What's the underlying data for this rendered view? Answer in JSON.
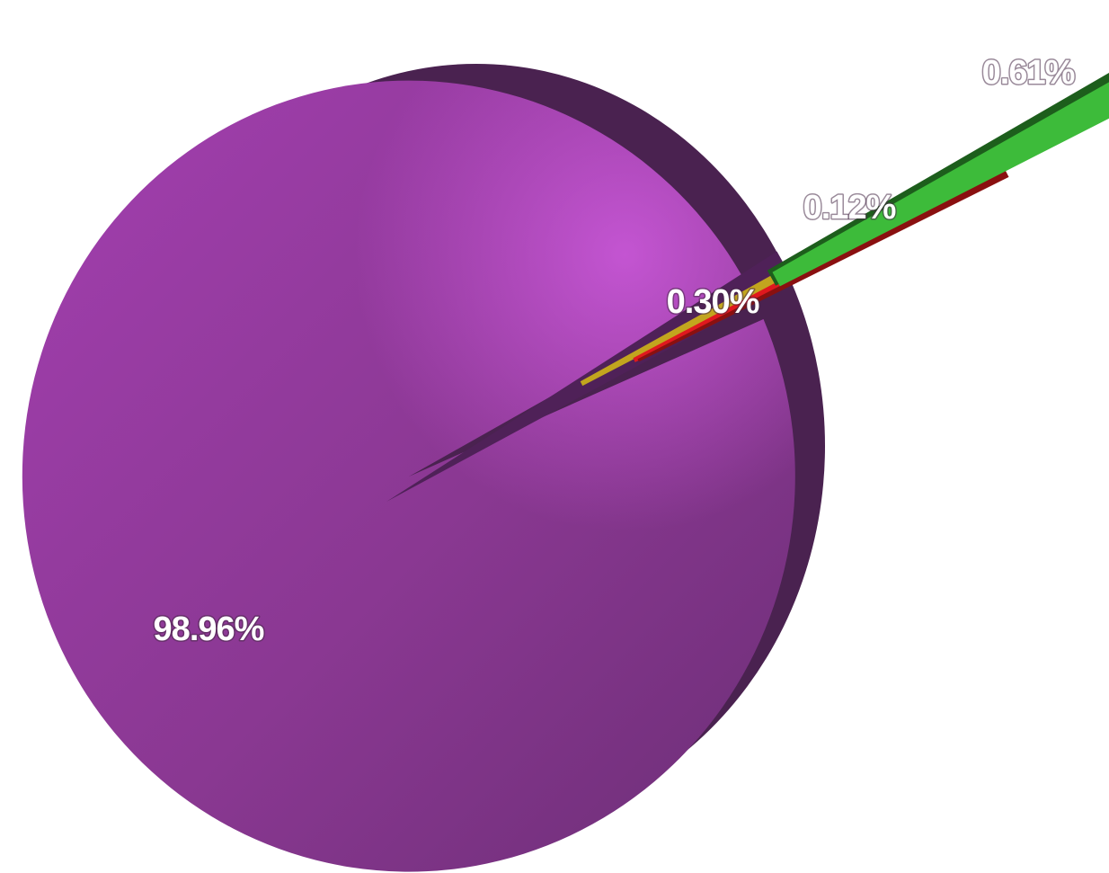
{
  "chart_data": {
    "type": "pie",
    "style": "3d-exploded",
    "legend": "none",
    "slices": [
      {
        "value": 98.96,
        "label": "98.96%",
        "color": "#8e3a96"
      },
      {
        "value": 0.3,
        "label": "0.30%",
        "color": "#c2a51e"
      },
      {
        "value": 0.12,
        "label": "0.12%",
        "color": "#e0181e"
      },
      {
        "value": 0.61,
        "label": "0.61%",
        "color": "#3dbb3a"
      }
    ]
  }
}
